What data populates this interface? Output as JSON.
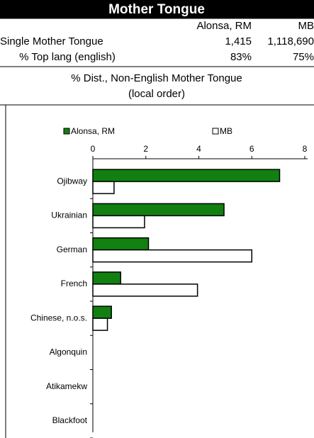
{
  "header": {
    "title": "Mother Tongue"
  },
  "table": {
    "columns": [
      "Alonsa, RM",
      "MB"
    ],
    "rows": [
      [
        "Single Mother Tongue",
        "1,415",
        "1,118,690"
      ],
      [
        "% Top lang (english)",
        "83%",
        "75%"
      ]
    ]
  },
  "section": {
    "title": "% Dist., Non-English Mother Tongue",
    "subtitle": "(local order)"
  },
  "chart_data": {
    "type": "bar",
    "orientation": "horizontal",
    "categories": [
      "Ojibway",
      "Ukrainian",
      "German",
      "French",
      "Chinese, n.o.s.",
      "Algonquin",
      "Atikamekw",
      "Blackfoot"
    ],
    "series": [
      {
        "name": "Alonsa, RM",
        "color": "#118011",
        "values": [
          7.05,
          4.95,
          2.1,
          1.05,
          0.7,
          0,
          0,
          0
        ]
      },
      {
        "name": "MB",
        "color": "#ffffff",
        "values": [
          0.8,
          1.95,
          6.0,
          3.95,
          0.55,
          0,
          0,
          0
        ]
      }
    ],
    "xlim": [
      0,
      8
    ],
    "xticks": [
      0,
      2,
      4,
      6,
      8
    ],
    "legend": "top",
    "grid": false
  }
}
